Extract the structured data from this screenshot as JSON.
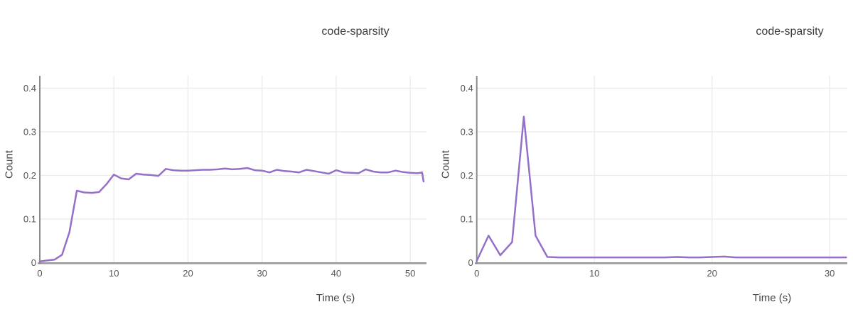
{
  "chart_data": [
    {
      "type": "line",
      "title": "code-sparsity",
      "xlabel": "Time (s)",
      "ylabel": "Count",
      "line_color": "#9470c8",
      "grid": true,
      "legend": false,
      "xlim": [
        0,
        52
      ],
      "ylim": [
        0,
        0.425
      ],
      "xticks": [
        0,
        10,
        20,
        30,
        40,
        50
      ],
      "yticks": [
        0,
        0.1,
        0.2,
        0.3,
        0.4
      ],
      "x": [
        0,
        1,
        2,
        3,
        4,
        5,
        6,
        7,
        8,
        9,
        10,
        11,
        12,
        13,
        14,
        15,
        16,
        17,
        18,
        19,
        20,
        21,
        22,
        23,
        24,
        25,
        26,
        27,
        28,
        29,
        30,
        31,
        32,
        33,
        34,
        35,
        36,
        37,
        38,
        39,
        40,
        41,
        42,
        43,
        44,
        45,
        46,
        47,
        48,
        49,
        50,
        51,
        51.6,
        51.8
      ],
      "y": [
        0.003,
        0.005,
        0.007,
        0.018,
        0.07,
        0.165,
        0.161,
        0.16,
        0.162,
        0.18,
        0.202,
        0.193,
        0.191,
        0.204,
        0.202,
        0.201,
        0.199,
        0.215,
        0.212,
        0.211,
        0.211,
        0.212,
        0.213,
        0.213,
        0.214,
        0.216,
        0.214,
        0.215,
        0.217,
        0.212,
        0.211,
        0.207,
        0.213,
        0.21,
        0.209,
        0.207,
        0.213,
        0.21,
        0.207,
        0.204,
        0.212,
        0.207,
        0.206,
        0.205,
        0.214,
        0.209,
        0.207,
        0.207,
        0.211,
        0.208,
        0.206,
        0.205,
        0.207,
        0.186
      ]
    },
    {
      "type": "line",
      "title": "code-sparsity",
      "xlabel": "Time (s)",
      "ylabel": "Count",
      "line_color": "#9470c8",
      "grid": true,
      "legend": false,
      "xlim": [
        0,
        31.4
      ],
      "ylim": [
        0,
        0.425
      ],
      "xticks": [
        0,
        10,
        20,
        30
      ],
      "yticks": [
        0,
        0.1,
        0.2,
        0.3,
        0.4
      ],
      "x": [
        0,
        1,
        2,
        3,
        4,
        5,
        6,
        7,
        8,
        9,
        10,
        11,
        12,
        13,
        14,
        15,
        16,
        17,
        18,
        19,
        20,
        21,
        22,
        23,
        24,
        25,
        26,
        27,
        28,
        29,
        30,
        31,
        31.4
      ],
      "y": [
        0.004,
        0.062,
        0.017,
        0.047,
        0.335,
        0.062,
        0.013,
        0.012,
        0.012,
        0.012,
        0.012,
        0.012,
        0.012,
        0.012,
        0.012,
        0.012,
        0.012,
        0.013,
        0.012,
        0.012,
        0.013,
        0.014,
        0.012,
        0.012,
        0.012,
        0.012,
        0.012,
        0.012,
        0.012,
        0.012,
        0.012,
        0.012,
        0.012
      ]
    }
  ]
}
